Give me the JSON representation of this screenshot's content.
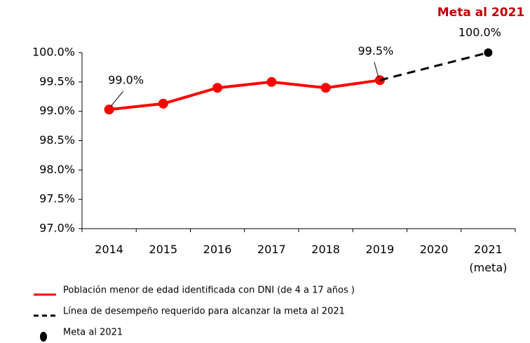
{
  "chart_data": {
    "type": "line",
    "title": "Meta al 2021",
    "categories": [
      "2014",
      "2015",
      "2016",
      "2017",
      "2018",
      "2019",
      "2020",
      "2021 (meta)"
    ],
    "series": [
      {
        "name": "Población menor de edad identificada con DNI (de 4 a 17 años )",
        "color": "#ff0000",
        "style": "solid",
        "values": [
          99.03,
          99.13,
          99.4,
          99.5,
          99.4,
          99.53,
          null,
          null
        ],
        "value_labels": [
          "99.0%",
          null,
          null,
          null,
          null,
          "99.5%",
          null,
          null
        ]
      },
      {
        "name": "Línea de desempeño requerido para alcanzar la meta al 2021",
        "color": "#000000",
        "style": "dashed",
        "values": [
          null,
          null,
          null,
          null,
          null,
          99.53,
          99.765,
          100
        ]
      },
      {
        "name": "Meta al 2021",
        "color": "#000000",
        "style": "marker",
        "values": [
          null,
          null,
          null,
          null,
          null,
          null,
          null,
          100
        ],
        "value_labels": [
          null,
          null,
          null,
          null,
          null,
          null,
          null,
          "100.0%"
        ]
      }
    ],
    "ylim": [
      97,
      100
    ],
    "yticks": [
      {
        "value": 97,
        "label": "97.0%"
      },
      {
        "value": 97.5,
        "label": "97.5%"
      },
      {
        "value": 98,
        "label": "98.0%"
      },
      {
        "value": 98.5,
        "label": "98.5%"
      },
      {
        "value": 99,
        "label": "99.0%"
      },
      {
        "value": 99.5,
        "label": "99.5%"
      },
      {
        "value": 100,
        "label": "100.0%"
      }
    ],
    "grid": false
  }
}
